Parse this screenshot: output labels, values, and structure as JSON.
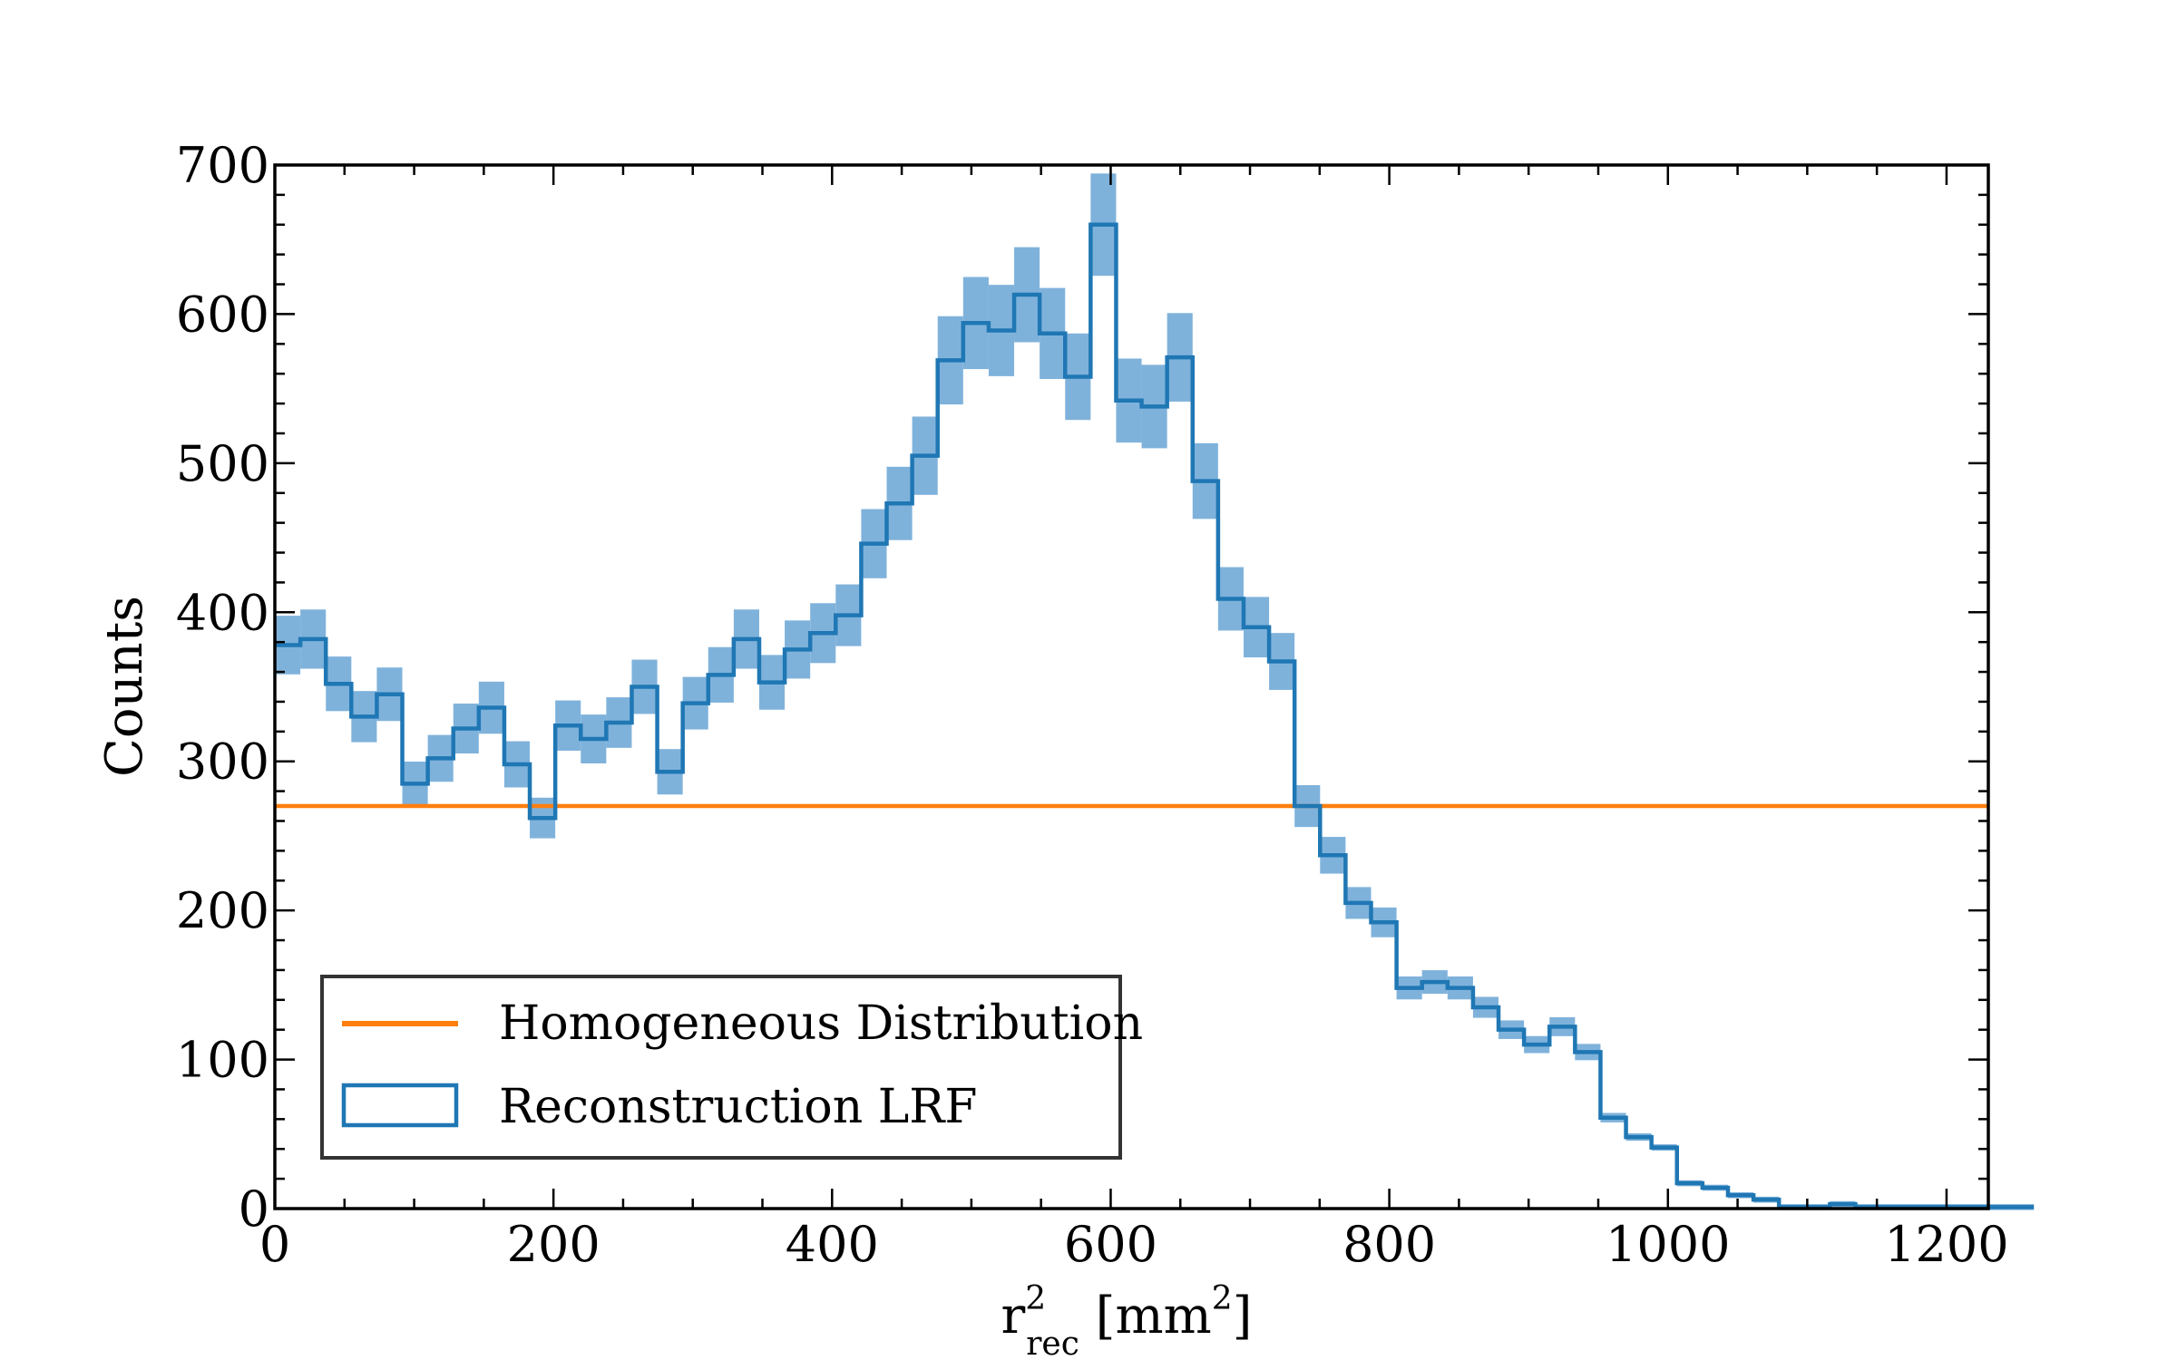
{
  "chart_data": {
    "type": "histogram",
    "title": "",
    "xlabel": {
      "base": "r",
      "superscript": "2",
      "subscript": "rec",
      "unit_open": " [mm",
      "unit_superscript": "2",
      "unit_close": "]"
    },
    "ylabel": "Counts",
    "xlim": [
      0,
      1230
    ],
    "ylim": [
      0,
      700
    ],
    "xticks": [
      0,
      200,
      400,
      600,
      800,
      1000,
      1200
    ],
    "yticks": [
      0,
      100,
      200,
      300,
      400,
      500,
      600,
      700
    ],
    "grid": false,
    "legend_position": "lower-left",
    "bin_width": 18.3,
    "series": [
      {
        "name": "Homogeneous Distribution",
        "kind": "horizontal-line",
        "value": 270,
        "color": "#ff7f0e"
      },
      {
        "name": "Reconstruction LRF",
        "kind": "step-with-error-band",
        "color": "#1f77b4",
        "band_color": "#7fb2db",
        "error_fraction": 0.052,
        "values": [
          378,
          382,
          352,
          330,
          345,
          285,
          302,
          322,
          336,
          298,
          262,
          324,
          315,
          326,
          350,
          293,
          339,
          358,
          382,
          353,
          375,
          386,
          398,
          446,
          473,
          505,
          569,
          594,
          589,
          613,
          587,
          558,
          660,
          542,
          538,
          571,
          488,
          409,
          390,
          367,
          270,
          237,
          205,
          192,
          148,
          152,
          148,
          135,
          120,
          110,
          122,
          105,
          61,
          48,
          41,
          17,
          14,
          9,
          6,
          1,
          1,
          3,
          1,
          1,
          1,
          1,
          1,
          1,
          1,
          0,
          0,
          0
        ]
      }
    ]
  }
}
